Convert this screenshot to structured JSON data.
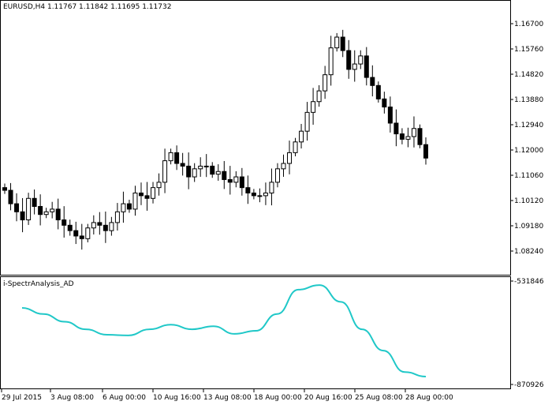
{
  "main_chart": {
    "header_label": "EURUSD,H4  1.11767 1.11842 1.11695 1.11732",
    "price_scale": [
      "1.16700",
      "1.15760",
      "1.14820",
      "1.13880",
      "1.12940",
      "1.12000",
      "1.11060",
      "1.10120",
      "1.09180",
      "1.08240"
    ]
  },
  "indicator_panel": {
    "label": "i-SpectrAnalysis_AD",
    "scale_top": "-531846",
    "scale_bottom": "-870926",
    "line_color": "#20c8c8"
  },
  "time_axis": [
    "29 Jul 2015",
    "3 Aug 08:00",
    "6 Aug 00:00",
    "10 Aug 16:00",
    "13 Aug 08:00",
    "18 Aug 00:00",
    "20 Aug 16:00",
    "25 Aug 08:00",
    "28 Aug 00:00"
  ],
  "chart_data": [
    {
      "type": "candlestick",
      "symbol_timeframe": "EURUSD,H4",
      "last_bar": {
        "open": 1.11767,
        "high": 1.11842,
        "low": 1.11695,
        "close": 1.11732
      },
      "y_ticks": [
        1.167,
        1.1576,
        1.1482,
        1.1388,
        1.1294,
        1.12,
        1.1106,
        1.1012,
        1.0918,
        1.0824
      ],
      "x_tick_labels": [
        "29 Jul 2015",
        "3 Aug 08:00",
        "6 Aug 00:00",
        "10 Aug 16:00",
        "13 Aug 08:00",
        "18 Aug 00:00",
        "20 Aug 16:00",
        "25 Aug 08:00",
        "28 Aug 00:00"
      ],
      "close_path": [
        1.105,
        1.1,
        1.097,
        1.094,
        1.102,
        1.099,
        1.096,
        1.097,
        1.098,
        1.094,
        1.092,
        1.09,
        1.088,
        1.087,
        1.091,
        1.093,
        1.092,
        1.09,
        1.093,
        1.097,
        1.1,
        1.098,
        1.104,
        1.103,
        1.102,
        1.106,
        1.108,
        1.116,
        1.119,
        1.115,
        1.114,
        1.11,
        1.113,
        1.114,
        1.114,
        1.111,
        1.112,
        1.109,
        1.108,
        1.11,
        1.106,
        1.104,
        1.103,
        1.103,
        1.104,
        1.108,
        1.113,
        1.115,
        1.119,
        1.123,
        1.127,
        1.134,
        1.138,
        1.142,
        1.148,
        1.158,
        1.162,
        1.157,
        1.15,
        1.152,
        1.155,
        1.147,
        1.144,
        1.139,
        1.136,
        1.13,
        1.126,
        1.124,
        1.125,
        1.128,
        1.122,
        1.117
      ]
    },
    {
      "type": "line",
      "series": [
        {
          "name": "i-SpectrAnalysis_AD",
          "color": "#20c8c8"
        }
      ],
      "ylim": [
        -870926,
        -531846
      ],
      "values": [
        -620000,
        -640000,
        -665000,
        -690000,
        -708000,
        -710000,
        -690000,
        -675000,
        -690000,
        -680000,
        -705000,
        -695000,
        -640000,
        -560000,
        -545000,
        -600000,
        -690000,
        -760000,
        -830000,
        -845000
      ]
    }
  ]
}
